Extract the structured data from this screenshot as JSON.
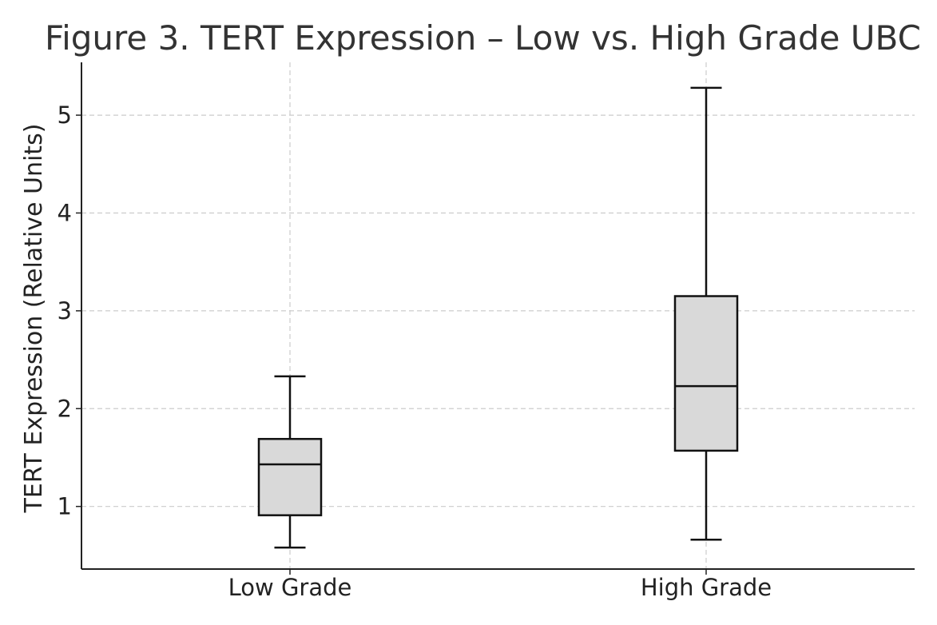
{
  "chart_data": {
    "type": "box",
    "title": "Figure 3. TERT Expression – Low vs. High Grade UBC",
    "xlabel": "",
    "ylabel": "TERT Expression (Relative Units)",
    "categories": [
      "Low Grade",
      "High Grade"
    ],
    "boxes": [
      {
        "category": "Low Grade",
        "whisker_low": 0.58,
        "q1": 0.91,
        "median": 1.43,
        "q3": 1.69,
        "whisker_high": 2.33
      },
      {
        "category": "High Grade",
        "whisker_low": 0.66,
        "q1": 1.57,
        "median": 2.23,
        "q3": 3.15,
        "whisker_high": 5.28
      }
    ],
    "yticks": [
      1,
      2,
      3,
      4,
      5
    ],
    "ylim": [
      0.36,
      5.54
    ],
    "grid": true,
    "box_color": "#d9d9d9",
    "line_color": "#111111",
    "grid_color": "#cccccc"
  }
}
